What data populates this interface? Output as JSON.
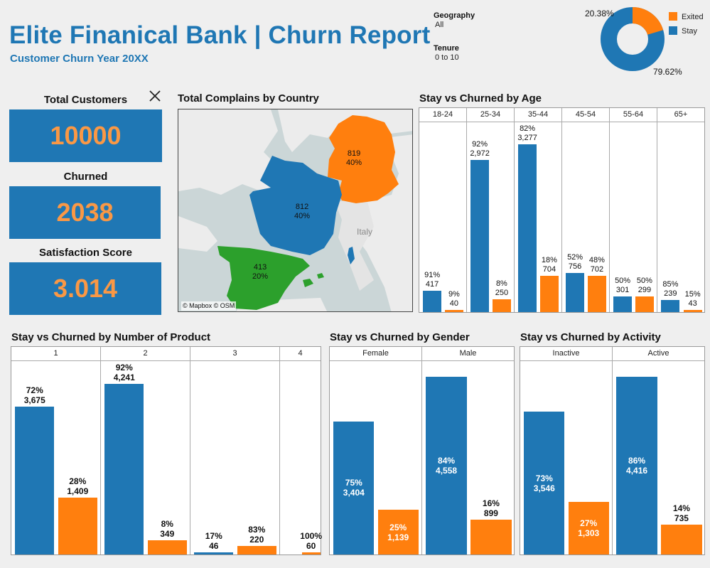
{
  "header": {
    "title": "Elite Finanical Bank | Churn Report",
    "subtitle": "Customer Churn Year 20XX"
  },
  "filters": {
    "geography_label": "Geography",
    "geography_value": "All",
    "tenure_label": "Tenure",
    "tenure_value": "0 to 10"
  },
  "donut": {
    "exited_pct_label": "20.38%",
    "stay_pct_label": "79.62%",
    "exited_fraction": 0.2038,
    "legend_exited": "Exited",
    "legend_stay": "Stay"
  },
  "kpis": {
    "total_customers_label": "Total Customers",
    "total_customers_value": "10000",
    "churned_label": "Churned",
    "churned_value": "2038",
    "satisfaction_label": "Satisfaction Score",
    "satisfaction_value": "3.014",
    "close_icon": "close-icon"
  },
  "map": {
    "title": "Total Complains by Country",
    "germany_value": "819",
    "germany_pct": "40%",
    "france_value": "812",
    "france_pct": "40%",
    "spain_value": "413",
    "spain_pct": "20%",
    "italy_label": "Italy",
    "attribution": "© Mapbox © OSM"
  },
  "colors": {
    "stay": "#1f77b4",
    "exited": "#ff7f0e",
    "spain": "#2ca02c",
    "kpi_text": "#fa9845"
  },
  "chart_data": [
    {
      "type": "bar",
      "title": "Stay vs Churned by Age",
      "categories": [
        "18-24",
        "25-34",
        "35-44",
        "45-54",
        "55-64",
        "65+"
      ],
      "series": [
        {
          "name": "Stay",
          "values": [
            417,
            2972,
            3277,
            756,
            301,
            239
          ],
          "labels_pct": [
            "91%",
            "92%",
            "82%",
            "52%",
            "50%",
            "85%"
          ],
          "labels_val": [
            "417",
            "2,972",
            "3,277",
            "756",
            "301",
            "239"
          ]
        },
        {
          "name": "Exited",
          "values": [
            40,
            250,
            704,
            702,
            299,
            43
          ],
          "labels_pct": [
            "9%",
            "8%",
            "18%",
            "48%",
            "50%",
            "15%"
          ],
          "labels_val": [
            "40",
            "250",
            "704",
            "702",
            "299",
            "43"
          ]
        }
      ],
      "ylim": [
        0,
        3700
      ]
    },
    {
      "type": "bar",
      "title": "Stay vs Churned by Number of Product",
      "categories": [
        "1",
        "2",
        "3",
        "4"
      ],
      "series": [
        {
          "name": "Stay",
          "values": [
            3675,
            4241,
            46,
            0
          ],
          "labels_pct": [
            "72%",
            "92%",
            "17%",
            ""
          ],
          "labels_val": [
            "3,675",
            "4,241",
            "46",
            ""
          ]
        },
        {
          "name": "Exited",
          "values": [
            1409,
            349,
            220,
            60
          ],
          "labels_pct": [
            "28%",
            "8%",
            "83%",
            "100%"
          ],
          "labels_val": [
            "1,409",
            "349",
            "220",
            "60"
          ]
        }
      ],
      "ylim": [
        0,
        4800
      ]
    },
    {
      "type": "bar",
      "title": "Stay vs Churned by Gender",
      "categories": [
        "Female",
        "Male"
      ],
      "series": [
        {
          "name": "Stay",
          "values": [
            3404,
            4558
          ],
          "labels_pct": [
            "75%",
            "84%"
          ],
          "labels_val": [
            "3,404",
            "4,558"
          ]
        },
        {
          "name": "Exited",
          "values": [
            1139,
            899
          ],
          "labels_pct": [
            "25%",
            "16%"
          ],
          "labels_val": [
            "1,139",
            "899"
          ]
        }
      ],
      "ylim": [
        0,
        4950
      ]
    },
    {
      "type": "bar",
      "title": "Stay vs Churned by Activity",
      "categories": [
        "Inactive",
        "Active"
      ],
      "series": [
        {
          "name": "Stay",
          "values": [
            3546,
            4416
          ],
          "labels_pct": [
            "73%",
            "86%"
          ],
          "labels_val": [
            "3,546",
            "4,416"
          ]
        },
        {
          "name": "Exited",
          "values": [
            1303,
            735
          ],
          "labels_pct": [
            "27%",
            "14%"
          ],
          "labels_val": [
            "1,303",
            "735"
          ]
        }
      ],
      "ylim": [
        0,
        4800
      ]
    }
  ]
}
